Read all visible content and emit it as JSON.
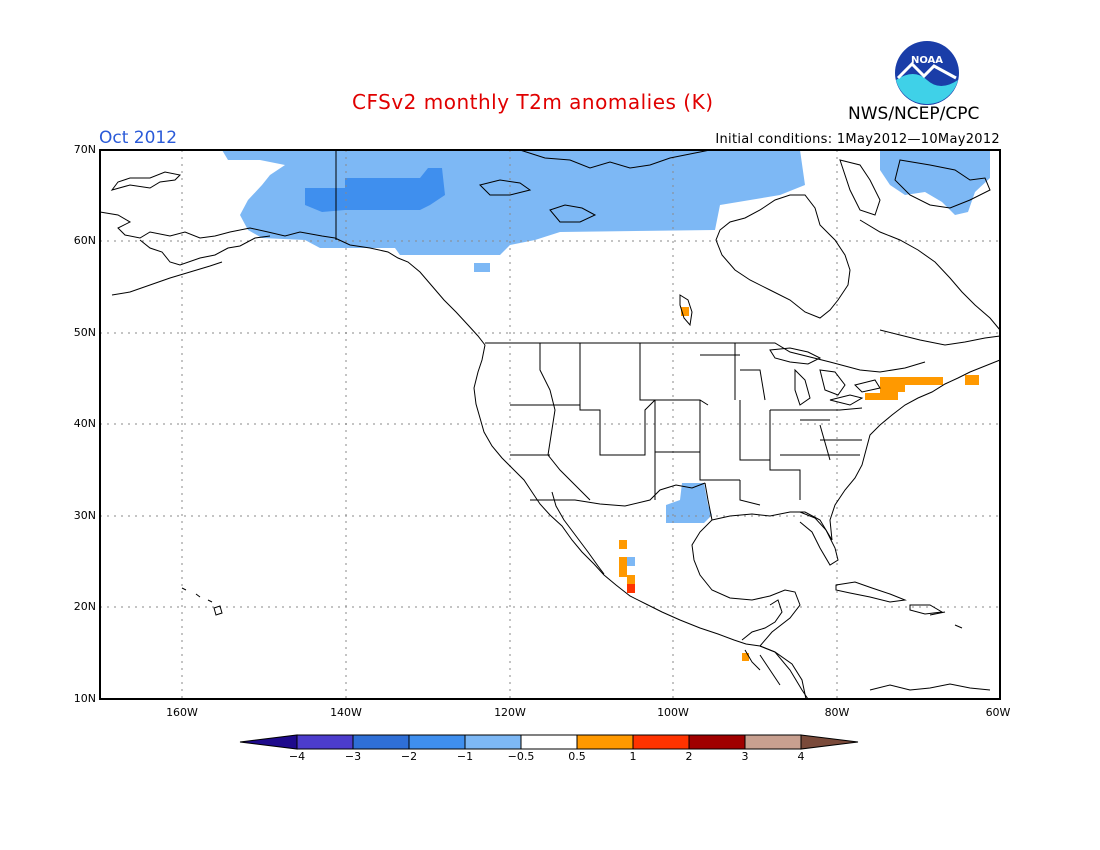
{
  "title": "CFSv2 monthly T2m anomalies (K)",
  "month": "Oct 2012",
  "initial_conditions": "Initial conditions: 1May2012—10May2012",
  "agency": "NWS/NCEP/CPC",
  "logo_text": "NOAA",
  "lat_labels": [
    "70N",
    "60N",
    "50N",
    "40N",
    "30N",
    "20N",
    "10N"
  ],
  "lon_labels": [
    "160W",
    "140W",
    "120W",
    "100W",
    "80W",
    "60W"
  ],
  "colorbar": {
    "labels": [
      "−4",
      "−3",
      "−2",
      "−1",
      "−0.5",
      "0.5",
      "1",
      "2",
      "3",
      "4"
    ],
    "colors": [
      "#1e0a8c",
      "#4c3ccc",
      "#2f6fd6",
      "#3f8fee",
      "#7db8f5",
      "#ffffff",
      "#ff9900",
      "#ff3300",
      "#a00000",
      "#c8a090",
      "#7a4a3a"
    ]
  },
  "anomaly_colors": {
    "cold_1": "#7db8f5",
    "cold_2": "#3f8fee",
    "warm_1": "#ff9900",
    "warm_2": "#ff3300"
  }
}
